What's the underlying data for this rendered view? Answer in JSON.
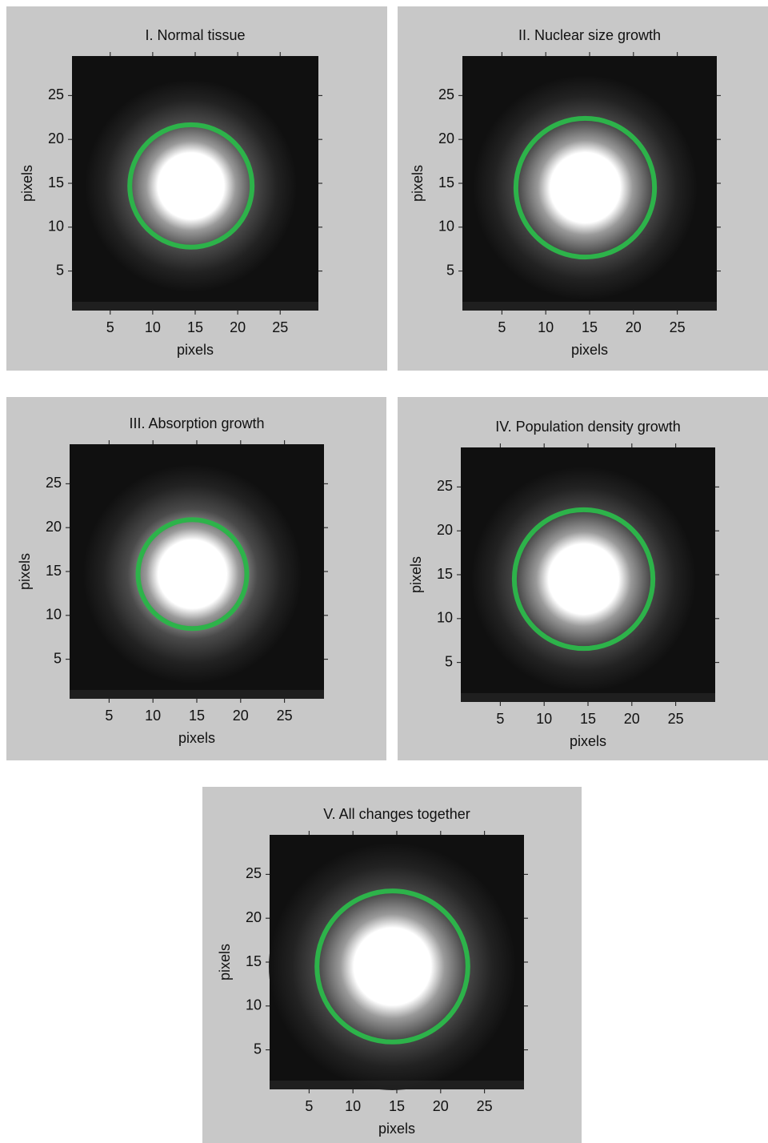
{
  "chart_data": [
    {
      "type": "image",
      "title": "I. Normal tissue",
      "xlabel": "pixels",
      "ylabel": "pixels",
      "xlim": [
        0.5,
        29.5
      ],
      "ylim": [
        0.5,
        29.5
      ],
      "xticks": [
        5,
        10,
        15,
        20,
        25
      ],
      "yticks": [
        5,
        10,
        15,
        20,
        25
      ],
      "circle": {
        "x": 14.5,
        "y": 14.7,
        "r": 7.2,
        "color": "#2db34a"
      },
      "spot": {
        "x": 14.5,
        "y": 14.7,
        "r": 3.9
      }
    },
    {
      "type": "image",
      "title": "II. Nuclear size growth",
      "xlabel": "pixels",
      "ylabel": "pixels",
      "xlim": [
        0.5,
        29.5
      ],
      "ylim": [
        0.5,
        29.5
      ],
      "xticks": [
        5,
        10,
        15,
        20,
        25
      ],
      "yticks": [
        5,
        10,
        15,
        20,
        25
      ],
      "circle": {
        "x": 14.5,
        "y": 14.5,
        "r": 7.9,
        "color": "#2db34a"
      },
      "spot": {
        "x": 14.5,
        "y": 14.5,
        "r": 4.0
      }
    },
    {
      "type": "image",
      "title": "III.  Absorption growth",
      "xlabel": "pixels",
      "ylabel": "pixels",
      "xlim": [
        0.5,
        29.5
      ],
      "ylim": [
        0.5,
        29.5
      ],
      "xticks": [
        5,
        10,
        15,
        20,
        25
      ],
      "yticks": [
        5,
        10,
        15,
        20,
        25
      ],
      "circle": {
        "x": 14.5,
        "y": 14.7,
        "r": 6.2,
        "color": "#2db34a"
      },
      "spot": {
        "x": 14.5,
        "y": 14.7,
        "r": 3.9
      }
    },
    {
      "type": "image",
      "title": "IV. Population density growth",
      "xlabel": "pixels",
      "ylabel": "pixels",
      "xlim": [
        0.5,
        29.5
      ],
      "ylim": [
        0.5,
        29.5
      ],
      "xticks": [
        5,
        10,
        15,
        20,
        25
      ],
      "yticks": [
        5,
        10,
        15,
        20,
        25
      ],
      "circle": {
        "x": 14.5,
        "y": 14.5,
        "r": 7.9,
        "color": "#2db34a"
      },
      "spot": {
        "x": 14.5,
        "y": 14.5,
        "r": 4.0
      }
    },
    {
      "type": "image",
      "title": "V. All changes together",
      "xlabel": "pixels",
      "ylabel": "pixels",
      "xlim": [
        0.5,
        29.5
      ],
      "ylim": [
        0.5,
        29.5
      ],
      "xticks": [
        5,
        10,
        15,
        20,
        25
      ],
      "yticks": [
        5,
        10,
        15,
        20,
        25
      ],
      "circle": {
        "x": 14.5,
        "y": 14.5,
        "r": 8.6,
        "color": "#2db34a"
      },
      "spot": {
        "x": 14.5,
        "y": 14.5,
        "r": 4.4
      }
    }
  ]
}
